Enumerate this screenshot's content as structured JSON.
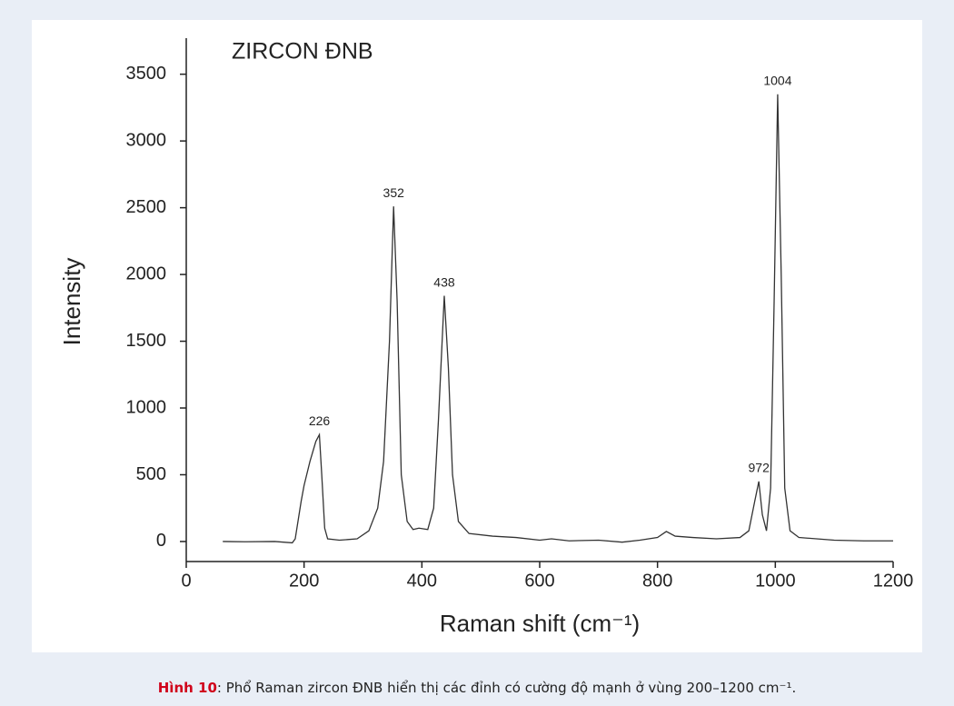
{
  "chart_data": {
    "type": "line",
    "title": "ZIRCON ĐNB",
    "xlabel": "Raman shift (cm⁻¹)",
    "ylabel": "Intensity",
    "color": "#333333",
    "x": [
      62,
      100,
      150,
      180,
      185,
      195,
      200,
      210,
      220,
      226,
      230,
      235,
      240,
      260,
      290,
      310,
      325,
      335,
      345,
      352,
      358,
      365,
      375,
      385,
      395,
      410,
      420,
      428,
      438,
      445,
      452,
      462,
      480,
      520,
      560,
      600,
      620,
      650,
      700,
      740,
      770,
      800,
      815,
      830,
      860,
      900,
      940,
      955,
      965,
      972,
      978,
      985,
      992,
      998,
      1004,
      1010,
      1016,
      1025,
      1040,
      1100,
      1150,
      1200
    ],
    "values": [
      0,
      -2,
      0,
      -10,
      20,
      300,
      420,
      600,
      750,
      800,
      500,
      100,
      20,
      10,
      20,
      80,
      250,
      600,
      1500,
      2510,
      1800,
      500,
      150,
      90,
      100,
      90,
      250,
      900,
      1840,
      1300,
      500,
      150,
      60,
      40,
      30,
      10,
      20,
      5,
      10,
      -5,
      10,
      30,
      75,
      40,
      30,
      20,
      30,
      80,
      300,
      450,
      200,
      80,
      400,
      1800,
      3350,
      2000,
      400,
      80,
      30,
      10,
      5,
      5
    ],
    "annotations": [
      {
        "label": "226",
        "x": 226,
        "y": 800
      },
      {
        "label": "352",
        "x": 352,
        "y": 2510
      },
      {
        "label": "438",
        "x": 438,
        "y": 1840
      },
      {
        "label": "972",
        "x": 972,
        "y": 450
      },
      {
        "label": "1004",
        "x": 1004,
        "y": 3350
      }
    ],
    "xlim": [
      0,
      1200
    ],
    "ylim": [
      -150,
      3770
    ],
    "xticks": [
      0,
      200,
      400,
      600,
      800,
      1000,
      1200
    ],
    "yticks": [
      0,
      500,
      1000,
      1500,
      2000,
      2500,
      3000,
      3500
    ]
  },
  "caption": {
    "label": "Hình 10",
    "text": ": Phổ Raman zircon ĐNB hiển thị các đỉnh có cường độ mạnh ở vùng 200–1200 cm⁻¹."
  }
}
